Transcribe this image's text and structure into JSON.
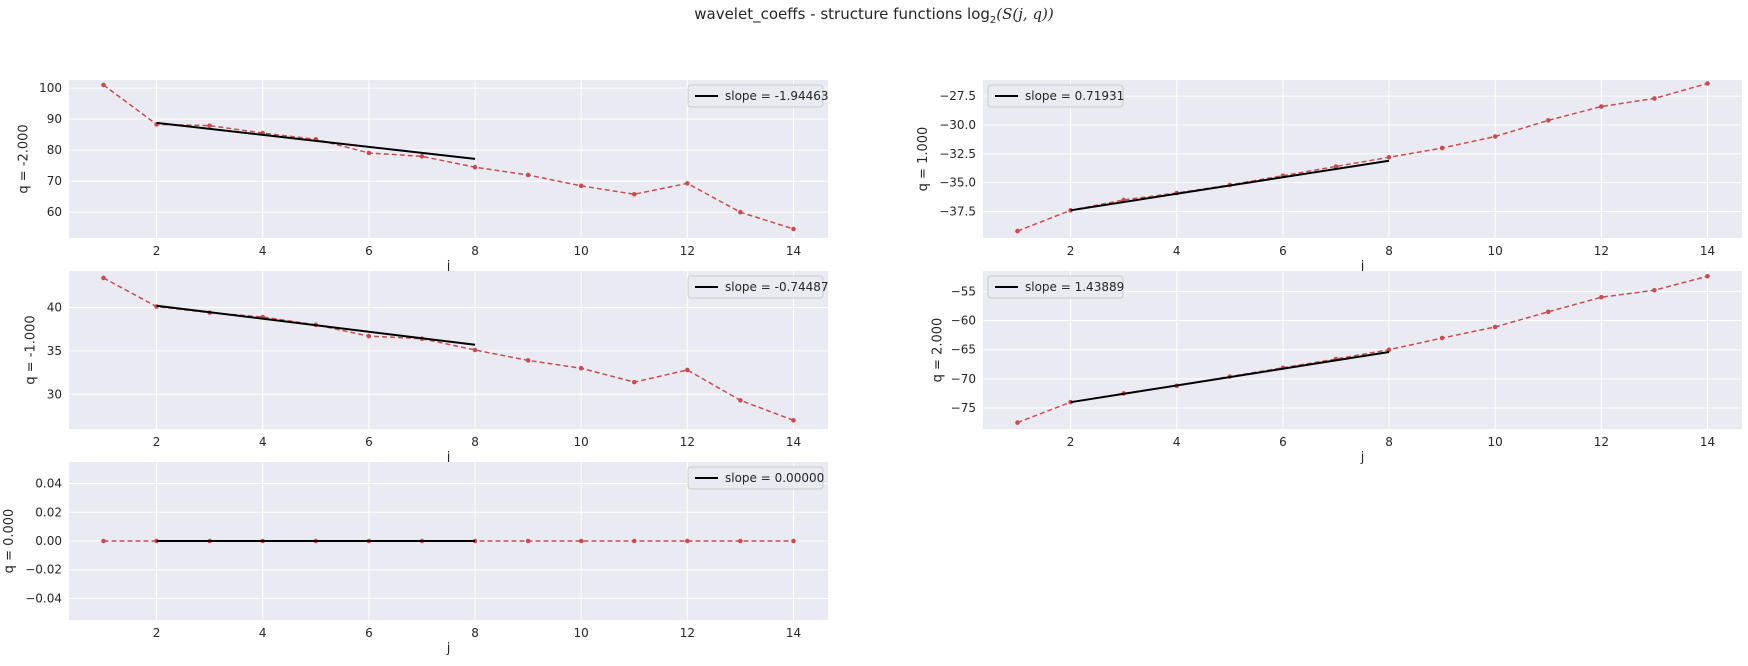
{
  "figure": {
    "title_prefix": "wavelet_coeffs - structure functions log",
    "title_sub": "2",
    "title_math": "(S(j, q))"
  },
  "colors": {
    "background": "#eaeaf2",
    "grid": "#ffffff",
    "data": "#c44e52",
    "fit": "#000000"
  },
  "chart_data": [
    {
      "type": "line",
      "xlabel": "j",
      "ylabel": "q = -2.000",
      "xlim": [
        0.35,
        14.65
      ],
      "ylim": [
        51.7,
        102.6
      ],
      "xticks": [
        2,
        4,
        6,
        8,
        10,
        12,
        14
      ],
      "yticks": [
        60,
        70,
        80,
        90,
        100
      ],
      "ytick_labels": [
        "60",
        "70",
        "80",
        "90",
        "100"
      ],
      "legend": "slope = -1.94463",
      "legend_loc": "upper right",
      "series": [
        {
          "x": [
            1,
            2,
            3,
            4,
            5,
            6,
            7,
            8,
            9,
            10,
            11,
            12,
            13,
            14
          ],
          "values": [
            101.0,
            88.3,
            87.9,
            85.5,
            83.5,
            79.1,
            78.0,
            74.5,
            72.0,
            68.5,
            65.8,
            69.3,
            60.0,
            54.6
          ]
        },
        {
          "x": [
            2,
            8
          ],
          "values": [
            88.8,
            77.2
          ]
        }
      ]
    },
    {
      "type": "line",
      "xlabel": "j",
      "ylabel": "q = 1.000",
      "xlim": [
        0.35,
        14.65
      ],
      "ylim": [
        -39.8,
        -26.1
      ],
      "xticks": [
        2,
        4,
        6,
        8,
        10,
        12,
        14
      ],
      "yticks": [
        -37.5,
        -35.0,
        -32.5,
        -30.0,
        -27.5
      ],
      "ytick_labels": [
        "−37.5",
        "−35.0",
        "−32.5",
        "−30.0",
        "−27.5"
      ],
      "legend": "slope = 0.71931",
      "legend_loc": "upper left",
      "series": [
        {
          "x": [
            1,
            2,
            3,
            4,
            5,
            6,
            7,
            8,
            9,
            10,
            11,
            12,
            13,
            14
          ],
          "values": [
            -39.2,
            -37.4,
            -36.5,
            -35.9,
            -35.2,
            -34.4,
            -33.6,
            -32.8,
            -32.0,
            -31.0,
            -29.6,
            -28.4,
            -27.7,
            -26.4
          ]
        },
        {
          "x": [
            2,
            8
          ],
          "values": [
            -37.4,
            -33.1
          ]
        }
      ]
    },
    {
      "type": "line",
      "xlabel": "j",
      "ylabel": "q = -1.000",
      "xlim": [
        0.35,
        14.65
      ],
      "ylim": [
        26.0,
        44.2
      ],
      "xticks": [
        2,
        4,
        6,
        8,
        10,
        12,
        14
      ],
      "yticks": [
        30,
        35,
        40
      ],
      "ytick_labels": [
        "30",
        "35",
        "40"
      ],
      "legend": "slope = -0.74487",
      "legend_loc": "upper right",
      "series": [
        {
          "x": [
            1,
            2,
            3,
            4,
            5,
            6,
            7,
            8,
            9,
            10,
            11,
            12,
            13,
            14
          ],
          "values": [
            43.4,
            40.1,
            39.4,
            38.9,
            38.0,
            36.7,
            36.4,
            35.1,
            33.9,
            33.0,
            31.4,
            32.8,
            29.3,
            27.0
          ]
        },
        {
          "x": [
            2,
            8
          ],
          "values": [
            40.2,
            35.7
          ]
        }
      ]
    },
    {
      "type": "line",
      "xlabel": "j",
      "ylabel": "q = 2.000",
      "xlim": [
        0.35,
        14.65
      ],
      "ylim": [
        -78.6,
        -51.5
      ],
      "xticks": [
        2,
        4,
        6,
        8,
        10,
        12,
        14
      ],
      "yticks": [
        -75,
        -70,
        -65,
        -60,
        -55
      ],
      "ytick_labels": [
        "−75",
        "−70",
        "−65",
        "−60",
        "−55"
      ],
      "legend": "slope = 1.43889",
      "legend_loc": "upper left",
      "series": [
        {
          "x": [
            1,
            2,
            3,
            4,
            5,
            6,
            7,
            8,
            9,
            10,
            11,
            12,
            13,
            14
          ],
          "values": [
            -77.5,
            -74.0,
            -72.5,
            -71.2,
            -69.6,
            -68.1,
            -66.6,
            -65.0,
            -63.0,
            -61.1,
            -58.5,
            -56.0,
            -54.8,
            -52.4
          ]
        },
        {
          "x": [
            2,
            8
          ],
          "values": [
            -74.0,
            -65.4
          ]
        }
      ]
    },
    {
      "type": "line",
      "xlabel": "j",
      "ylabel": "q = 0.000",
      "xlim": [
        0.35,
        14.65
      ],
      "ylim": [
        -0.055,
        0.055
      ],
      "xticks": [
        2,
        4,
        6,
        8,
        10,
        12,
        14
      ],
      "yticks": [
        -0.04,
        -0.02,
        0.0,
        0.02,
        0.04
      ],
      "ytick_labels": [
        "−0.04",
        "−0.02",
        "0.00",
        "0.02",
        "0.04"
      ],
      "legend": "slope = 0.00000",
      "legend_loc": "upper right",
      "series": [
        {
          "x": [
            1,
            2,
            3,
            4,
            5,
            6,
            7,
            8,
            9,
            10,
            11,
            12,
            13,
            14
          ],
          "values": [
            0,
            0,
            0,
            0,
            0,
            0,
            0,
            0,
            0,
            0,
            0,
            0,
            0,
            0
          ]
        },
        {
          "x": [
            2,
            8
          ],
          "values": [
            0,
            0
          ]
        }
      ]
    }
  ]
}
